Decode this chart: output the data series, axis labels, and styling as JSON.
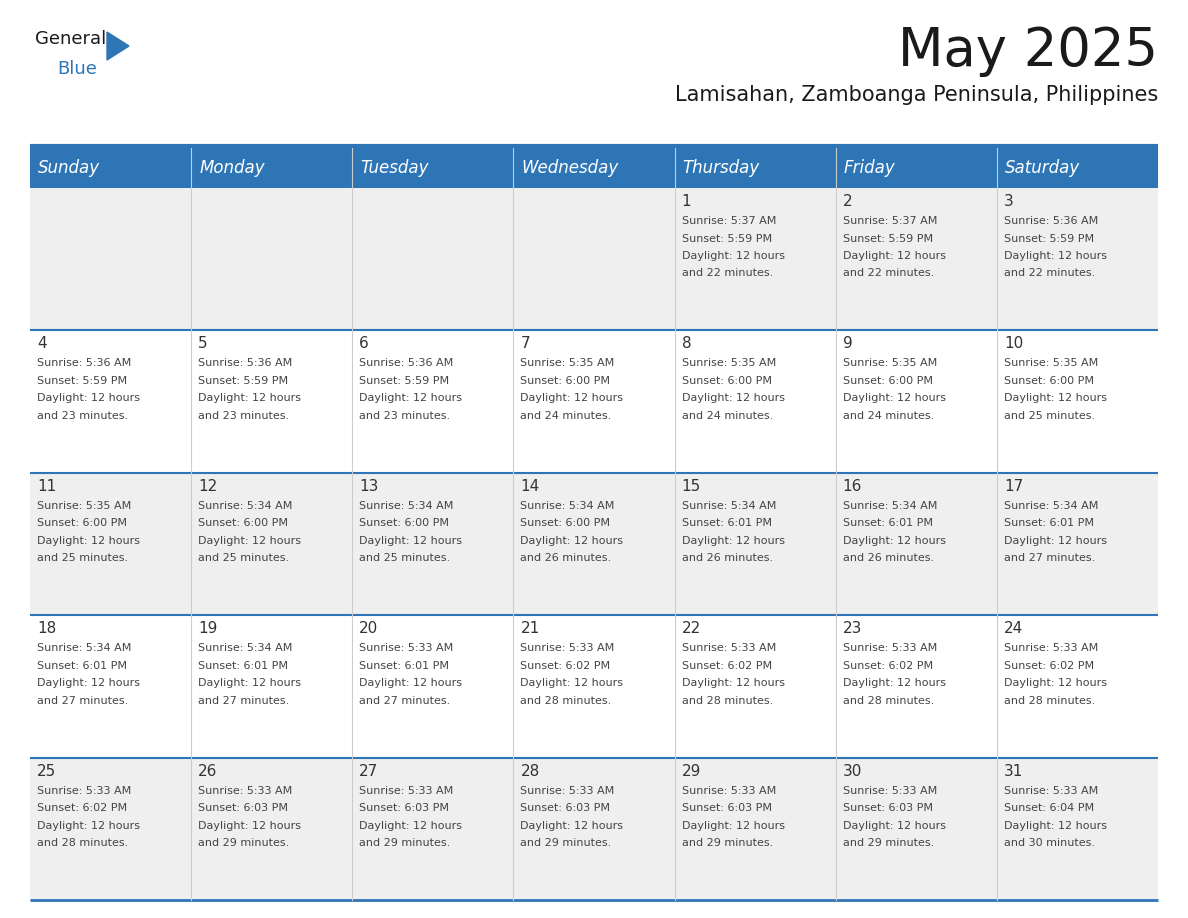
{
  "title": "May 2025",
  "subtitle": "Lamisahan, Zamboanga Peninsula, Philippines",
  "header_bg_color": "#2E75B6",
  "header_text_color": "#FFFFFF",
  "day_names": [
    "Sunday",
    "Monday",
    "Tuesday",
    "Wednesday",
    "Thursday",
    "Friday",
    "Saturday"
  ],
  "bg_color": "#FFFFFF",
  "cell_bg_row0": "#EFEFEF",
  "cell_bg_row1": "#FFFFFF",
  "cell_bg_row2": "#EFEFEF",
  "cell_bg_row3": "#FFFFFF",
  "cell_bg_row4": "#EFEFEF",
  "separator_color": "#2E75B6",
  "grid_line_color": "#AAAAAA",
  "day_number_color": "#333333",
  "cell_text_color": "#444444",
  "title_fontsize": 38,
  "subtitle_fontsize": 15,
  "header_fontsize": 12,
  "day_num_fontsize": 11,
  "cell_text_fontsize": 8,
  "logo_general_color": "#1a1a1a",
  "logo_blue_color": "#2E75B6",
  "logo_triangle_color": "#2E75B6",
  "days": [
    {
      "day": 1,
      "col": 4,
      "row": 0,
      "sunrise": "5:37 AM",
      "sunset": "5:59 PM",
      "daylight_hours": 12,
      "daylight_minutes": 22
    },
    {
      "day": 2,
      "col": 5,
      "row": 0,
      "sunrise": "5:37 AM",
      "sunset": "5:59 PM",
      "daylight_hours": 12,
      "daylight_minutes": 22
    },
    {
      "day": 3,
      "col": 6,
      "row": 0,
      "sunrise": "5:36 AM",
      "sunset": "5:59 PM",
      "daylight_hours": 12,
      "daylight_minutes": 22
    },
    {
      "day": 4,
      "col": 0,
      "row": 1,
      "sunrise": "5:36 AM",
      "sunset": "5:59 PM",
      "daylight_hours": 12,
      "daylight_minutes": 23
    },
    {
      "day": 5,
      "col": 1,
      "row": 1,
      "sunrise": "5:36 AM",
      "sunset": "5:59 PM",
      "daylight_hours": 12,
      "daylight_minutes": 23
    },
    {
      "day": 6,
      "col": 2,
      "row": 1,
      "sunrise": "5:36 AM",
      "sunset": "5:59 PM",
      "daylight_hours": 12,
      "daylight_minutes": 23
    },
    {
      "day": 7,
      "col": 3,
      "row": 1,
      "sunrise": "5:35 AM",
      "sunset": "6:00 PM",
      "daylight_hours": 12,
      "daylight_minutes": 24
    },
    {
      "day": 8,
      "col": 4,
      "row": 1,
      "sunrise": "5:35 AM",
      "sunset": "6:00 PM",
      "daylight_hours": 12,
      "daylight_minutes": 24
    },
    {
      "day": 9,
      "col": 5,
      "row": 1,
      "sunrise": "5:35 AM",
      "sunset": "6:00 PM",
      "daylight_hours": 12,
      "daylight_minutes": 24
    },
    {
      "day": 10,
      "col": 6,
      "row": 1,
      "sunrise": "5:35 AM",
      "sunset": "6:00 PM",
      "daylight_hours": 12,
      "daylight_minutes": 25
    },
    {
      "day": 11,
      "col": 0,
      "row": 2,
      "sunrise": "5:35 AM",
      "sunset": "6:00 PM",
      "daylight_hours": 12,
      "daylight_minutes": 25
    },
    {
      "day": 12,
      "col": 1,
      "row": 2,
      "sunrise": "5:34 AM",
      "sunset": "6:00 PM",
      "daylight_hours": 12,
      "daylight_minutes": 25
    },
    {
      "day": 13,
      "col": 2,
      "row": 2,
      "sunrise": "5:34 AM",
      "sunset": "6:00 PM",
      "daylight_hours": 12,
      "daylight_minutes": 25
    },
    {
      "day": 14,
      "col": 3,
      "row": 2,
      "sunrise": "5:34 AM",
      "sunset": "6:00 PM",
      "daylight_hours": 12,
      "daylight_minutes": 26
    },
    {
      "day": 15,
      "col": 4,
      "row": 2,
      "sunrise": "5:34 AM",
      "sunset": "6:01 PM",
      "daylight_hours": 12,
      "daylight_minutes": 26
    },
    {
      "day": 16,
      "col": 5,
      "row": 2,
      "sunrise": "5:34 AM",
      "sunset": "6:01 PM",
      "daylight_hours": 12,
      "daylight_minutes": 26
    },
    {
      "day": 17,
      "col": 6,
      "row": 2,
      "sunrise": "5:34 AM",
      "sunset": "6:01 PM",
      "daylight_hours": 12,
      "daylight_minutes": 27
    },
    {
      "day": 18,
      "col": 0,
      "row": 3,
      "sunrise": "5:34 AM",
      "sunset": "6:01 PM",
      "daylight_hours": 12,
      "daylight_minutes": 27
    },
    {
      "day": 19,
      "col": 1,
      "row": 3,
      "sunrise": "5:34 AM",
      "sunset": "6:01 PM",
      "daylight_hours": 12,
      "daylight_minutes": 27
    },
    {
      "day": 20,
      "col": 2,
      "row": 3,
      "sunrise": "5:33 AM",
      "sunset": "6:01 PM",
      "daylight_hours": 12,
      "daylight_minutes": 27
    },
    {
      "day": 21,
      "col": 3,
      "row": 3,
      "sunrise": "5:33 AM",
      "sunset": "6:02 PM",
      "daylight_hours": 12,
      "daylight_minutes": 28
    },
    {
      "day": 22,
      "col": 4,
      "row": 3,
      "sunrise": "5:33 AM",
      "sunset": "6:02 PM",
      "daylight_hours": 12,
      "daylight_minutes": 28
    },
    {
      "day": 23,
      "col": 5,
      "row": 3,
      "sunrise": "5:33 AM",
      "sunset": "6:02 PM",
      "daylight_hours": 12,
      "daylight_minutes": 28
    },
    {
      "day": 24,
      "col": 6,
      "row": 3,
      "sunrise": "5:33 AM",
      "sunset": "6:02 PM",
      "daylight_hours": 12,
      "daylight_minutes": 28
    },
    {
      "day": 25,
      "col": 0,
      "row": 4,
      "sunrise": "5:33 AM",
      "sunset": "6:02 PM",
      "daylight_hours": 12,
      "daylight_minutes": 28
    },
    {
      "day": 26,
      "col": 1,
      "row": 4,
      "sunrise": "5:33 AM",
      "sunset": "6:03 PM",
      "daylight_hours": 12,
      "daylight_minutes": 29
    },
    {
      "day": 27,
      "col": 2,
      "row": 4,
      "sunrise": "5:33 AM",
      "sunset": "6:03 PM",
      "daylight_hours": 12,
      "daylight_minutes": 29
    },
    {
      "day": 28,
      "col": 3,
      "row": 4,
      "sunrise": "5:33 AM",
      "sunset": "6:03 PM",
      "daylight_hours": 12,
      "daylight_minutes": 29
    },
    {
      "day": 29,
      "col": 4,
      "row": 4,
      "sunrise": "5:33 AM",
      "sunset": "6:03 PM",
      "daylight_hours": 12,
      "daylight_minutes": 29
    },
    {
      "day": 30,
      "col": 5,
      "row": 4,
      "sunrise": "5:33 AM",
      "sunset": "6:03 PM",
      "daylight_hours": 12,
      "daylight_minutes": 29
    },
    {
      "day": 31,
      "col": 6,
      "row": 4,
      "sunrise": "5:33 AM",
      "sunset": "6:04 PM",
      "daylight_hours": 12,
      "daylight_minutes": 30
    }
  ]
}
